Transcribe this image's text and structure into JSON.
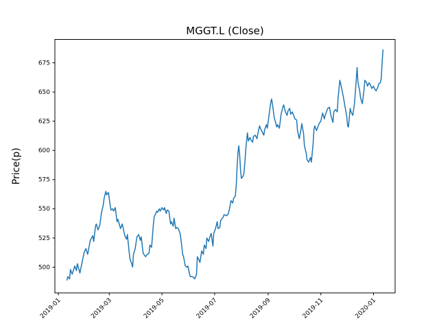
{
  "chart_data": {
    "type": "line",
    "title": "MGGT.L (Close)",
    "xlabel": "",
    "ylabel": "Price(p)",
    "grid": false,
    "legend": null,
    "line_color": "#1f77b4",
    "x_unit": "days since 2019-01-01",
    "xlim": [
      -4,
      390
    ],
    "ylim": [
      478,
      695
    ],
    "y_ticks": [
      500,
      525,
      550,
      575,
      600,
      625,
      650,
      675
    ],
    "x_ticks": [
      {
        "d": 0,
        "label": "2019-01"
      },
      {
        "d": 59,
        "label": "2019-03"
      },
      {
        "d": 120,
        "label": "2019-05"
      },
      {
        "d": 181,
        "label": "2019-07"
      },
      {
        "d": 243,
        "label": "2019-09"
      },
      {
        "d": 304,
        "label": "2019-11"
      },
      {
        "d": 365,
        "label": "2020-01"
      }
    ],
    "series": [
      {
        "name": "MGGT.L Close",
        "color": "#1f77b4",
        "points": [
          [
            10,
            489
          ],
          [
            11,
            492
          ],
          [
            13,
            490
          ],
          [
            14,
            498
          ],
          [
            16,
            494
          ],
          [
            19,
            501
          ],
          [
            21,
            497
          ],
          [
            22,
            503
          ],
          [
            24,
            498
          ],
          [
            25,
            495
          ],
          [
            28,
            506
          ],
          [
            30,
            513
          ],
          [
            32,
            516
          ],
          [
            34,
            511
          ],
          [
            37,
            523
          ],
          [
            40,
            527
          ],
          [
            41,
            522
          ],
          [
            43,
            535
          ],
          [
            44,
            537
          ],
          [
            46,
            532
          ],
          [
            48,
            536
          ],
          [
            50,
            547
          ],
          [
            52,
            553
          ],
          [
            53,
            559
          ],
          [
            55,
            565
          ],
          [
            56,
            562
          ],
          [
            58,
            564
          ],
          [
            60,
            553
          ],
          [
            61,
            549
          ],
          [
            63,
            550
          ],
          [
            64,
            548
          ],
          [
            66,
            551
          ],
          [
            68,
            539
          ],
          [
            69,
            541
          ],
          [
            72,
            533
          ],
          [
            74,
            537
          ],
          [
            77,
            527
          ],
          [
            79,
            524
          ],
          [
            80,
            528
          ],
          [
            82,
            513
          ],
          [
            83,
            507
          ],
          [
            85,
            503
          ],
          [
            86,
            500
          ],
          [
            87,
            511
          ],
          [
            89,
            516
          ],
          [
            91,
            526
          ],
          [
            93,
            528
          ],
          [
            95,
            523
          ],
          [
            96,
            526
          ],
          [
            98,
            513
          ],
          [
            99,
            511
          ],
          [
            101,
            509
          ],
          [
            103,
            511
          ],
          [
            105,
            512
          ],
          [
            106,
            519
          ],
          [
            108,
            517
          ],
          [
            110,
            536
          ],
          [
            111,
            543
          ],
          [
            114,
            548
          ],
          [
            115,
            547
          ],
          [
            117,
            550
          ],
          [
            118,
            548
          ],
          [
            120,
            551
          ],
          [
            122,
            549
          ],
          [
            123,
            551
          ],
          [
            125,
            546
          ],
          [
            126,
            549
          ],
          [
            128,
            548
          ],
          [
            130,
            537
          ],
          [
            131,
            539
          ],
          [
            133,
            535
          ],
          [
            134,
            542
          ],
          [
            136,
            533
          ],
          [
            137,
            534
          ],
          [
            139,
            533
          ],
          [
            141,
            529
          ],
          [
            142,
            524
          ],
          [
            144,
            511
          ],
          [
            145,
            509
          ],
          [
            147,
            501
          ],
          [
            149,
            500
          ],
          [
            150,
            501
          ],
          [
            152,
            494
          ],
          [
            153,
            492
          ],
          [
            155,
            492
          ],
          [
            157,
            491
          ],
          [
            158,
            490
          ],
          [
            160,
            494
          ],
          [
            161,
            509
          ],
          [
            163,
            506
          ],
          [
            164,
            504
          ],
          [
            166,
            514
          ],
          [
            168,
            511
          ],
          [
            169,
            519
          ],
          [
            171,
            516
          ],
          [
            172,
            525
          ],
          [
            174,
            522
          ],
          [
            176,
            527
          ],
          [
            177,
            529
          ],
          [
            179,
            518
          ],
          [
            180,
            529
          ],
          [
            182,
            533
          ],
          [
            184,
            539
          ],
          [
            185,
            533
          ],
          [
            187,
            534
          ],
          [
            188,
            540
          ],
          [
            191,
            543
          ],
          [
            192,
            545
          ],
          [
            195,
            544
          ],
          [
            197,
            546
          ],
          [
            199,
            553
          ],
          [
            200,
            557
          ],
          [
            202,
            555
          ],
          [
            203,
            559
          ],
          [
            205,
            561
          ],
          [
            206,
            570
          ],
          [
            207,
            585
          ],
          [
            208,
            598
          ],
          [
            209,
            604
          ],
          [
            210,
            596
          ],
          [
            211,
            583
          ],
          [
            212,
            576
          ],
          [
            214,
            578
          ],
          [
            215,
            581
          ],
          [
            216,
            590
          ],
          [
            217,
            600
          ],
          [
            218,
            608
          ],
          [
            219,
            615
          ],
          [
            220,
            608
          ],
          [
            222,
            611
          ],
          [
            223,
            609
          ],
          [
            225,
            607
          ],
          [
            226,
            612
          ],
          [
            228,
            613
          ],
          [
            230,
            610
          ],
          [
            231,
            614
          ],
          [
            233,
            621
          ],
          [
            234,
            619
          ],
          [
            236,
            616
          ],
          [
            238,
            613
          ],
          [
            239,
            618
          ],
          [
            241,
            622
          ],
          [
            242,
            619
          ],
          [
            244,
            630
          ],
          [
            246,
            641
          ],
          [
            247,
            644
          ],
          [
            249,
            634
          ],
          [
            250,
            628
          ],
          [
            253,
            620
          ],
          [
            254,
            622
          ],
          [
            256,
            619
          ],
          [
            258,
            631
          ],
          [
            260,
            637
          ],
          [
            261,
            639
          ],
          [
            263,
            633
          ],
          [
            265,
            630
          ],
          [
            266,
            634
          ],
          [
            268,
            636
          ],
          [
            269,
            631
          ],
          [
            271,
            633
          ],
          [
            273,
            629
          ],
          [
            274,
            627
          ],
          [
            276,
            626
          ],
          [
            277,
            617
          ],
          [
            279,
            610
          ],
          [
            281,
            618
          ],
          [
            282,
            623
          ],
          [
            284,
            614
          ],
          [
            285,
            604
          ],
          [
            287,
            598
          ],
          [
            288,
            592
          ],
          [
            290,
            590
          ],
          [
            292,
            594
          ],
          [
            293,
            590
          ],
          [
            295,
            605
          ],
          [
            296,
            618
          ],
          [
            297,
            621
          ],
          [
            299,
            617
          ],
          [
            300,
            619
          ],
          [
            302,
            623
          ],
          [
            304,
            625
          ],
          [
            306,
            632
          ],
          [
            308,
            627
          ],
          [
            309,
            630
          ],
          [
            312,
            636
          ],
          [
            314,
            637
          ],
          [
            316,
            629
          ],
          [
            318,
            624
          ],
          [
            319,
            633
          ],
          [
            321,
            635
          ],
          [
            323,
            633
          ],
          [
            324,
            645
          ],
          [
            326,
            660
          ],
          [
            327,
            657
          ],
          [
            330,
            646
          ],
          [
            331,
            642
          ],
          [
            334,
            629
          ],
          [
            335,
            621
          ],
          [
            336,
            620
          ],
          [
            338,
            636
          ],
          [
            339,
            633
          ],
          [
            341,
            630
          ],
          [
            343,
            640
          ],
          [
            344,
            650
          ],
          [
            346,
            671
          ],
          [
            347,
            658
          ],
          [
            349,
            651
          ],
          [
            350,
            645
          ],
          [
            352,
            640
          ],
          [
            354,
            652
          ],
          [
            355,
            660
          ],
          [
            357,
            658
          ],
          [
            358,
            655
          ],
          [
            360,
            658
          ],
          [
            362,
            655
          ],
          [
            363,
            653
          ],
          [
            365,
            655
          ],
          [
            366,
            653
          ],
          [
            368,
            651
          ],
          [
            370,
            654
          ],
          [
            371,
            657
          ],
          [
            373,
            658
          ],
          [
            374,
            662
          ],
          [
            375,
            676
          ],
          [
            376,
            686
          ]
        ]
      }
    ]
  }
}
